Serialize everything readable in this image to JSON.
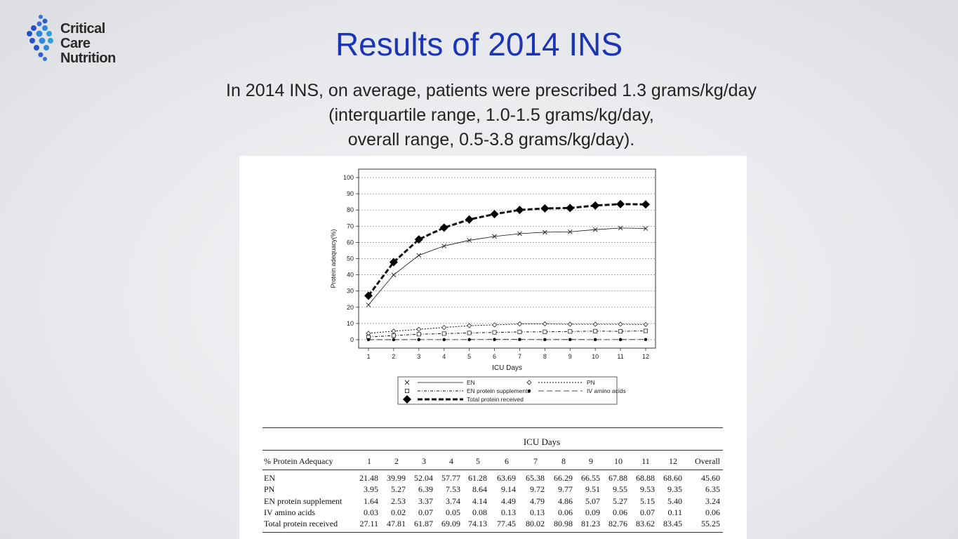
{
  "logo": {
    "line1": "Critical Care",
    "line2": "Nutrition"
  },
  "title": "Results of 2014 INS",
  "subtitle": {
    "line1": "In 2014 INS, on average, patients were prescribed 1.3 grams/kg/day",
    "line2": "(interquartile range, 1.0-1.5 grams/kg/day,",
    "line3": "overall range, 0.5-3.8 grams/kg/day)."
  },
  "chart_data": {
    "type": "line",
    "title": "",
    "xlabel": "ICU Days",
    "ylabel": "Protein adequacy(%)",
    "x": [
      1,
      2,
      3,
      4,
      5,
      6,
      7,
      8,
      9,
      10,
      11,
      12
    ],
    "xlim": [
      1,
      12
    ],
    "ylim": [
      0,
      100
    ],
    "yticks": [
      0,
      10,
      20,
      30,
      40,
      50,
      60,
      70,
      80,
      90,
      100
    ],
    "grid": true,
    "legend_position": "bottom",
    "series": [
      {
        "name": "EN",
        "marker": "x",
        "style": "solid",
        "values": [
          21.48,
          39.99,
          52.04,
          57.77,
          61.28,
          63.69,
          65.38,
          66.29,
          66.55,
          67.88,
          68.88,
          68.6
        ]
      },
      {
        "name": "PN",
        "marker": "diamond-open",
        "style": "dotted",
        "values": [
          3.95,
          5.27,
          6.39,
          7.53,
          8.64,
          9.14,
          9.72,
          9.77,
          9.51,
          9.55,
          9.53,
          9.35
        ]
      },
      {
        "name": "EN protein supplements",
        "marker": "square-open",
        "style": "dashdot",
        "values": [
          1.64,
          2.53,
          3.37,
          3.74,
          4.14,
          4.49,
          4.79,
          4.86,
          5.07,
          5.27,
          5.15,
          5.4
        ]
      },
      {
        "name": "IV amino acids",
        "marker": "dot",
        "style": "longdash",
        "values": [
          0.03,
          0.02,
          0.07,
          0.05,
          0.08,
          0.13,
          0.13,
          0.06,
          0.09,
          0.06,
          0.07,
          0.11
        ]
      },
      {
        "name": "Total protein received",
        "marker": "diamond-filled",
        "style": "bold-dashed",
        "values": [
          27.11,
          47.81,
          61.87,
          69.09,
          74.13,
          77.45,
          80.02,
          80.98,
          81.23,
          82.76,
          83.62,
          83.45
        ]
      }
    ]
  },
  "table": {
    "group_header": "ICU Days",
    "row_header": "% Protein Adequacy",
    "columns": [
      "1",
      "2",
      "3",
      "4",
      "5",
      "6",
      "7",
      "8",
      "9",
      "10",
      "11",
      "12",
      "Overall"
    ],
    "rows": [
      {
        "label": "EN",
        "values": [
          "21.48",
          "39.99",
          "52.04",
          "57.77",
          "61.28",
          "63.69",
          "65.38",
          "66.29",
          "66.55",
          "67.88",
          "68.88",
          "68.60",
          "45.60"
        ]
      },
      {
        "label": "PN",
        "values": [
          "3.95",
          "5.27",
          "6.39",
          "7.53",
          "8.64",
          "9.14",
          "9.72",
          "9.77",
          "9.51",
          "9.55",
          "9.53",
          "9.35",
          "6.35"
        ]
      },
      {
        "label": "EN protein supplement",
        "values": [
          "1.64",
          "2.53",
          "3.37",
          "3.74",
          "4.14",
          "4.49",
          "4.79",
          "4.86",
          "5.07",
          "5.27",
          "5.15",
          "5.40",
          "3.24"
        ]
      },
      {
        "label": "IV amino acids",
        "values": [
          "0.03",
          "0.02",
          "0.07",
          "0.05",
          "0.08",
          "0.13",
          "0.13",
          "0.06",
          "0.09",
          "0.06",
          "0.07",
          "0.11",
          "0.06"
        ]
      },
      {
        "label": "Total protein received",
        "values": [
          "27.11",
          "47.81",
          "61.87",
          "69.09",
          "74.13",
          "77.45",
          "80.02",
          "80.98",
          "81.23",
          "82.76",
          "83.62",
          "83.45",
          "55.25"
        ]
      }
    ]
  }
}
